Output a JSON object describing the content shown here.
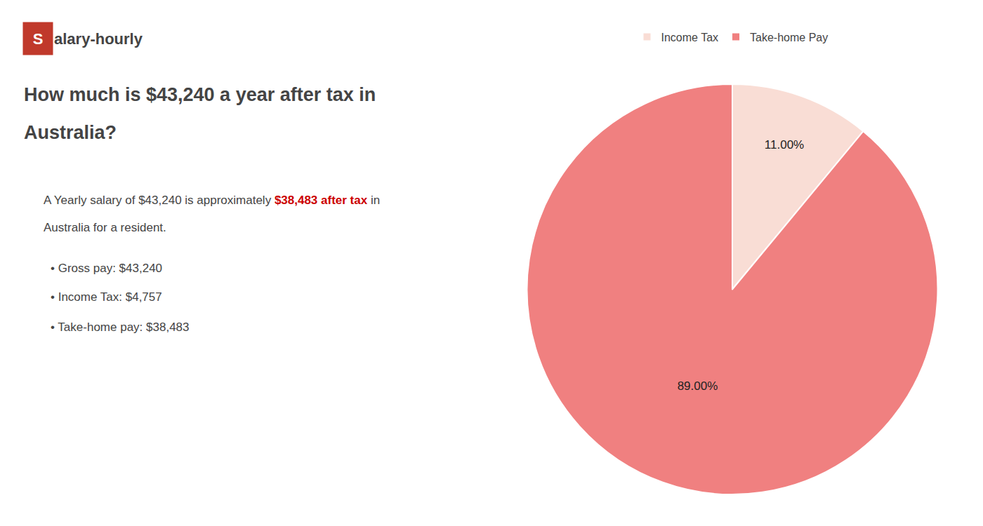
{
  "chart_data": {
    "type": "pie",
    "title": [
      "How much is $43,240 a year after tax in",
      "Australia?"
    ],
    "annotations": [
      [
        {
          "text": "S",
          "color": "#c0392b"
        },
        {
          "text": "alary-hourly"
        }
      ],
      [
        {
          "text": "A Yearly salary of $43,240 is approximately "
        },
        {
          "text": "$38,483 after tax",
          "color": "#cc0000"
        },
        {
          "text": " in"
        }
      ],
      [
        {
          "text": "Australia for a resident."
        }
      ],
      [
        {
          "text": "• Gross pay: $43,240"
        }
      ],
      [
        {
          "text": "• Income Tax: $4,757"
        }
      ],
      [
        {
          "text": "• Take-home pay: $38,483"
        }
      ]
    ],
    "categories": [
      "Income Tax",
      "Take-home Pay"
    ],
    "values": [
      11.0,
      89.0
    ],
    "value_labels": [
      "11.00%",
      "89.00%"
    ],
    "colors": [
      "#f9ddd5",
      "#f08080"
    ],
    "data_labels": true,
    "legend": "top"
  }
}
